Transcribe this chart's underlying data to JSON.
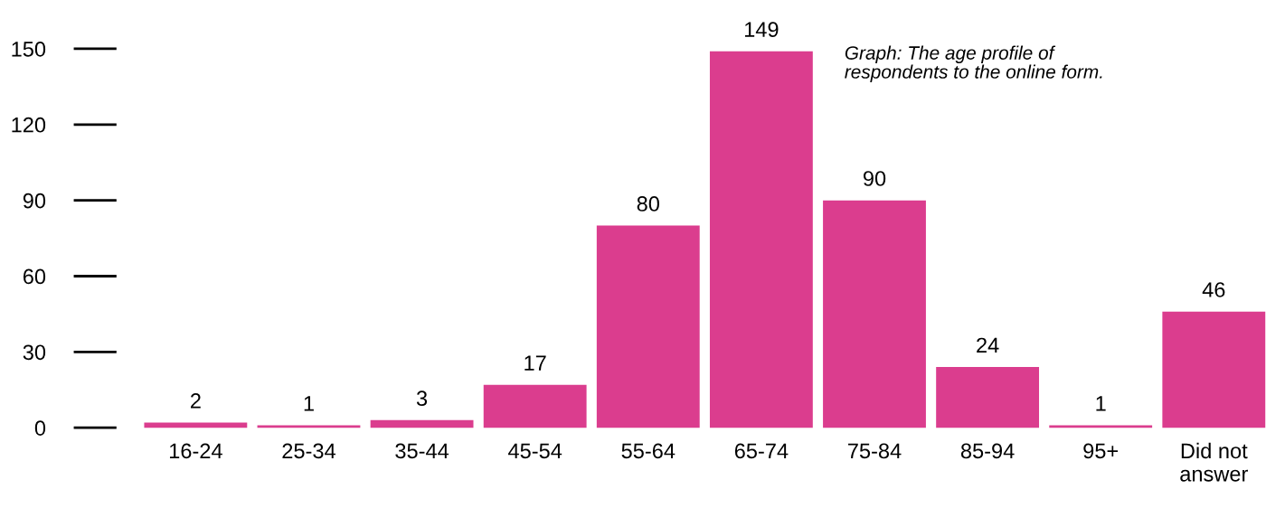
{
  "chart_data": {
    "type": "bar",
    "categories": [
      "16-24",
      "25-34",
      "35-44",
      "45-54",
      "55-64",
      "65-74",
      "75-84",
      "85-94",
      "95+",
      "Did not\nanswer"
    ],
    "values": [
      2,
      1,
      3,
      17,
      80,
      149,
      90,
      24,
      1,
      46
    ],
    "color": "#db3d8e",
    "ylim": [
      0,
      150
    ],
    "yticks": [
      0,
      30,
      60,
      90,
      120,
      150
    ],
    "data_labels": true,
    "grid": false,
    "legend": false,
    "annotations": [
      "Graph: The age profile of\nrespondents to the online form."
    ]
  }
}
